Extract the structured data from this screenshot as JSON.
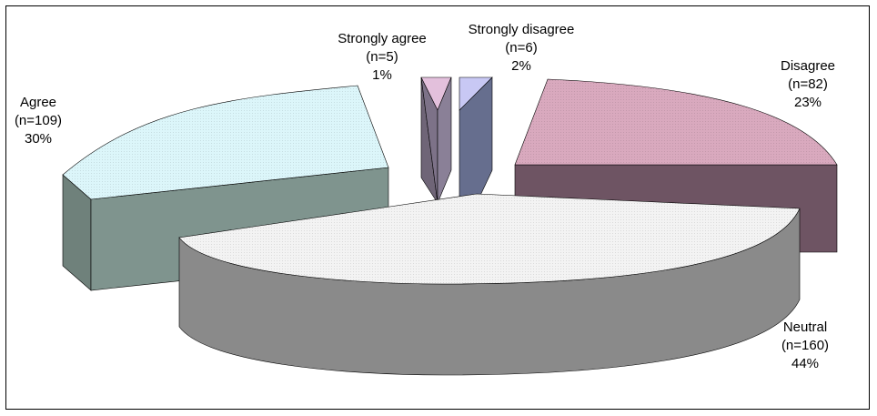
{
  "chart_data": {
    "type": "pie",
    "style": "3d-exploded",
    "slices": [
      {
        "category": "Strongly agree",
        "count_label": "(n=5)",
        "percent_label": "1%",
        "n": 5,
        "percent": 1,
        "color": "#e3c0dc"
      },
      {
        "category": "Strongly disagree",
        "count_label": "(n=6)",
        "percent_label": "2%",
        "n": 6,
        "percent": 2,
        "color": "#c8c8f4"
      },
      {
        "category": "Disagree",
        "count_label": "(n=82)",
        "percent_label": "23%",
        "n": 82,
        "percent": 23,
        "color": "#d9a9be"
      },
      {
        "category": "Neutral",
        "count_label": "(n=160)",
        "percent_label": "44%",
        "n": 160,
        "percent": 44,
        "color": "#f3f3f3"
      },
      {
        "category": "Agree",
        "count_label": "(n=109)",
        "percent_label": "30%",
        "n": 109,
        "percent": 30,
        "color": "#dcf6fa"
      }
    ],
    "legend": "none",
    "grid": false
  }
}
